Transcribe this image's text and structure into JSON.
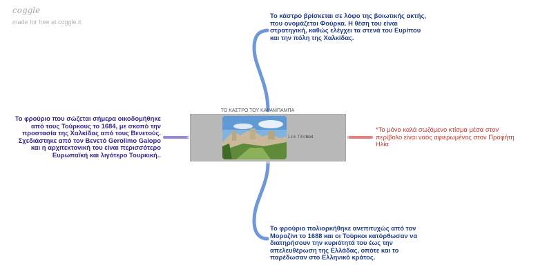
{
  "branding": {
    "logo": "coggle",
    "tagline": "made for free at coggle.it"
  },
  "central": {
    "title": "ΤΟ ΚΑΣΤΡΟ ΤΟΥ ΚΑΡΑΜΠΑΜΠΑ",
    "link_label": "Link Title",
    "link_text": "text",
    "photo_description": "castle-photo"
  },
  "nodes": {
    "top": "Το κάστρο βρίσκεται σε λόφο της βοιωτικής ακτής, που ονομάζεται Φούρκα. Η θέση του είναι στρατηγική, καθώς ελέγχει τα στενά του Ευρίπου και την πόλη της Χαλκίδας.",
    "left": "Το φρούριο που σώζεται σήμερα οικοδομήθηκε από τους Τούρκους το 1684, με σκοπό την προστασία της Χαλκίδας από τους Βενετούς. Σχεδιάστηκε από τον Βενετό Gerolimo Galopo και η αρχιτεκτονική του είναι περισσότερο Ευρωπαϊκή και λιγότερο Τουρκική..",
    "right": "*Το μόνο καλά σωζόμενο κτίσμα μέσα στον περίβολο είναι ναός αφιερωμένος στον Προφήτη Ηλία",
    "bottom": "Το φρούριο πολιορκήθηκε ανεπιτυχώς από τον Μοροζίνι το 1688 και οι Τούρκοι κατόρθωσαν να διατηρήσουν την κυριότητά του έως την απελευθέρωση της Ελλάδας, οπότε και το παρέδωσαν στο Ελληνικό κράτος."
  },
  "colors": {
    "branch_top": "#6f98dc",
    "branch_bottom": "#6f98dc",
    "branch_left": "#9489d8",
    "branch_right": "#e57f7b"
  }
}
